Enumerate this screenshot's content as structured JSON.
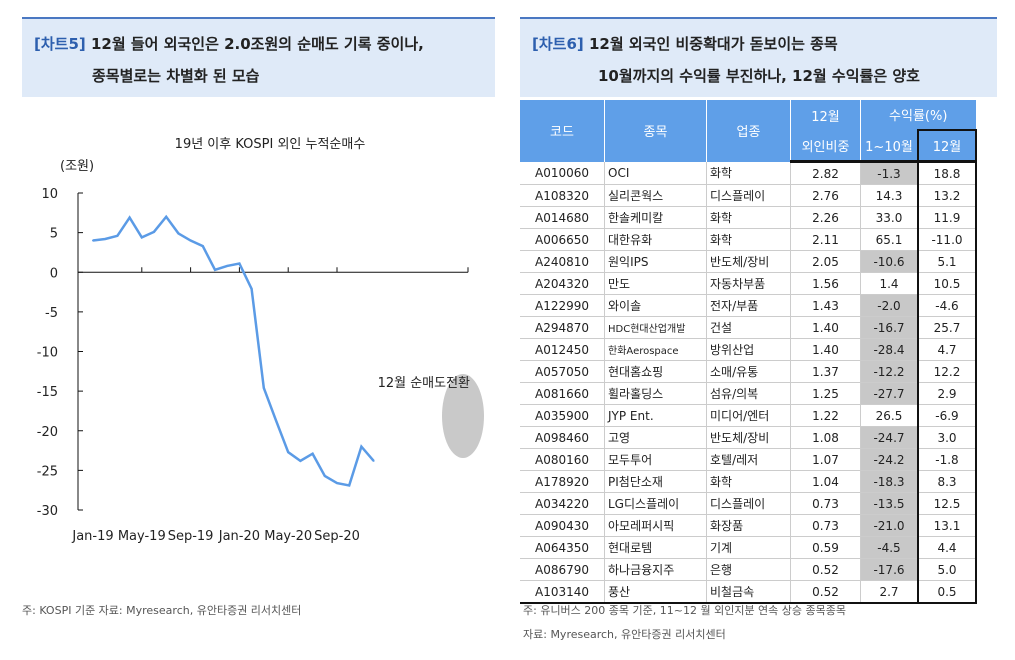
{
  "left": {
    "tag": "[차트5]",
    "title1": " 12월 들어 외국인은 2.0조원의 순매도 기록 중이나,",
    "title2": "종목별로는 차별화 된 모습",
    "note": "주: KOSPI 기준      자료: Myresearch, 유안타증권 리서치센터"
  },
  "chart_data": {
    "type": "line",
    "title": "19년 이후 KOSPI 외인 누적순매수",
    "ylabel": "(조원)",
    "ylim": [
      -30,
      10
    ],
    "yticks": [
      10,
      5,
      0,
      -5,
      -10,
      -15,
      -20,
      -25,
      -30
    ],
    "xticklabels": [
      "Jan-19",
      "May-19",
      "Sep-19",
      "Jan-20",
      "May-20",
      "Sep-20"
    ],
    "x": [
      "Jan-19",
      "Feb-19",
      "Mar-19",
      "Apr-19",
      "May-19",
      "Jun-19",
      "Jul-19",
      "Aug-19",
      "Sep-19",
      "Oct-19",
      "Nov-19",
      "Dec-19",
      "Jan-20",
      "Feb-20",
      "Mar-20",
      "Apr-20",
      "May-20",
      "Jun-20",
      "Jul-20",
      "Aug-20",
      "Sep-20",
      "Oct-20",
      "Nov-20",
      "Dec-20"
    ],
    "values": [
      4.0,
      4.2,
      4.6,
      6.9,
      4.4,
      5.1,
      7.0,
      4.9,
      4.0,
      3.3,
      0.3,
      0.8,
      1.1,
      -2.1,
      -14.6,
      -18.7,
      -22.7,
      -23.8,
      -22.9,
      -25.7,
      -26.6,
      -26.9,
      -22.0,
      -23.8
    ],
    "annotation": "12월 순매도전환",
    "color": "#5b9be6"
  },
  "right": {
    "tag": "[차트6]",
    "title1": " 12월 외국인 비중확대가 돋보이는 종목",
    "title2": "10월까지의 수익률 부진하나, 12월 수익률은 양호",
    "headers": {
      "code": "코드",
      "name": "종목",
      "sector": "업종",
      "weight1": "12월",
      "weight2": "외인비중",
      "ret": "수익률(%)",
      "ret1": "1~10월",
      "ret2": "12월"
    },
    "rows": [
      [
        "A010060",
        "OCI",
        "화학",
        "2.82",
        "-1.3",
        "18.8"
      ],
      [
        "A108320",
        "실리콘웍스",
        "디스플레이",
        "2.76",
        "14.3",
        "13.2"
      ],
      [
        "A014680",
        "한솔케미칼",
        "화학",
        "2.26",
        "33.0",
        "11.9"
      ],
      [
        "A006650",
        "대한유화",
        "화학",
        "2.11",
        "65.1",
        "-11.0"
      ],
      [
        "A240810",
        "원익IPS",
        "반도체/장비",
        "2.05",
        "-10.6",
        "5.1"
      ],
      [
        "A204320",
        "만도",
        "자동차부품",
        "1.56",
        "1.4",
        "10.5"
      ],
      [
        "A122990",
        "와이솔",
        "전자/부품",
        "1.43",
        "-2.0",
        "-4.6"
      ],
      [
        "A294870",
        "HDC현대산업개발",
        "건설",
        "1.40",
        "-16.7",
        "25.7"
      ],
      [
        "A012450",
        "한화Aerospace",
        "방위산업",
        "1.40",
        "-28.4",
        "4.7"
      ],
      [
        "A057050",
        "현대홈쇼핑",
        "소매/유통",
        "1.37",
        "-12.2",
        "12.2"
      ],
      [
        "A081660",
        "휠라홀딩스",
        "섬유/의복",
        "1.25",
        "-27.7",
        "2.9"
      ],
      [
        "A035900",
        "JYP Ent.",
        "미디어/엔터",
        "1.22",
        "26.5",
        "-6.9"
      ],
      [
        "A098460",
        "고영",
        "반도체/장비",
        "1.08",
        "-24.7",
        "3.0"
      ],
      [
        "A080160",
        "모두투어",
        "호텔/레저",
        "1.07",
        "-24.2",
        "-1.8"
      ],
      [
        "A178920",
        "PI첨단소재",
        "화학",
        "1.04",
        "-18.3",
        "8.3"
      ],
      [
        "A034220",
        "LG디스플레이",
        "디스플레이",
        "0.73",
        "-13.5",
        "12.5"
      ],
      [
        "A090430",
        "아모레퍼시픽",
        "화장품",
        "0.73",
        "-21.0",
        "13.1"
      ],
      [
        "A064350",
        "현대로템",
        "기계",
        "0.59",
        "-4.5",
        "4.4"
      ],
      [
        "A086790",
        "하나금융지주",
        "은행",
        "0.52",
        "-17.6",
        "5.0"
      ],
      [
        "A103140",
        "풍산",
        "비철금속",
        "0.52",
        "2.7",
        "0.5"
      ]
    ],
    "note1": "주: 유니버스 200 종목 기준, 11~12 월 외인지분 연속 상승 종목종목",
    "note2": "자료: Myresearch, 유안타증권 리서치센터"
  }
}
